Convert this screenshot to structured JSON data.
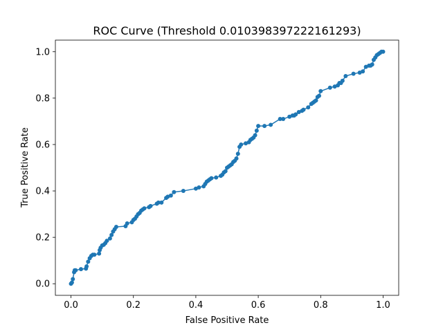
{
  "chart_data": {
    "type": "line",
    "title": "ROC Curve (Threshold 0.010398397222161293)",
    "xlabel": "False Positive Rate",
    "ylabel": "True Positive Rate",
    "xlim": [
      -0.05,
      1.05
    ],
    "ylim": [
      -0.05,
      1.05
    ],
    "xticks": [
      0.0,
      0.2,
      0.4,
      0.6,
      0.8,
      1.0
    ],
    "yticks": [
      0.0,
      0.2,
      0.4,
      0.6,
      0.8,
      1.0
    ],
    "tick_labels_x": [
      "0.0",
      "0.2",
      "0.4",
      "0.6",
      "0.8",
      "1.0"
    ],
    "tick_labels_y": [
      "0.0",
      "0.2",
      "0.4",
      "0.6",
      "0.8",
      "1.0"
    ],
    "grid": false,
    "color": "#1f77b4",
    "marker": "circle",
    "series": [
      {
        "x": [
          0.0,
          0.003,
          0.006,
          0.01,
          0.012,
          0.015,
          0.032,
          0.048,
          0.05,
          0.055,
          0.06,
          0.065,
          0.07,
          0.075,
          0.09,
          0.092,
          0.095,
          0.1,
          0.105,
          0.11,
          0.115,
          0.125,
          0.13,
          0.135,
          0.14,
          0.145,
          0.175,
          0.18,
          0.195,
          0.2,
          0.205,
          0.21,
          0.215,
          0.22,
          0.225,
          0.23,
          0.235,
          0.25,
          0.255,
          0.275,
          0.28,
          0.29,
          0.305,
          0.31,
          0.32,
          0.33,
          0.36,
          0.4,
          0.41,
          0.425,
          0.43,
          0.435,
          0.44,
          0.445,
          0.45,
          0.465,
          0.48,
          0.485,
          0.49,
          0.495,
          0.5,
          0.505,
          0.51,
          0.515,
          0.52,
          0.525,
          0.53,
          0.535,
          0.54,
          0.545,
          0.56,
          0.57,
          0.575,
          0.58,
          0.585,
          0.59,
          0.595,
          0.6,
          0.62,
          0.64,
          0.67,
          0.68,
          0.7,
          0.71,
          0.715,
          0.72,
          0.73,
          0.74,
          0.745,
          0.76,
          0.77,
          0.775,
          0.78,
          0.785,
          0.79,
          0.795,
          0.8,
          0.83,
          0.845,
          0.855,
          0.86,
          0.865,
          0.87,
          0.88,
          0.905,
          0.925,
          0.935,
          0.945,
          0.955,
          0.96,
          0.965,
          0.97,
          0.975,
          0.98,
          0.985,
          0.99,
          0.995,
          1.0
        ],
        "y": [
          0.0,
          0.005,
          0.02,
          0.05,
          0.058,
          0.058,
          0.063,
          0.065,
          0.075,
          0.095,
          0.11,
          0.12,
          0.125,
          0.125,
          0.13,
          0.145,
          0.155,
          0.165,
          0.168,
          0.175,
          0.185,
          0.195,
          0.21,
          0.225,
          0.235,
          0.245,
          0.248,
          0.26,
          0.265,
          0.275,
          0.28,
          0.29,
          0.3,
          0.305,
          0.315,
          0.32,
          0.325,
          0.33,
          0.335,
          0.345,
          0.35,
          0.35,
          0.37,
          0.375,
          0.38,
          0.395,
          0.4,
          0.41,
          0.415,
          0.42,
          0.43,
          0.44,
          0.445,
          0.45,
          0.455,
          0.458,
          0.465,
          0.47,
          0.48,
          0.485,
          0.5,
          0.505,
          0.51,
          0.515,
          0.525,
          0.53,
          0.54,
          0.56,
          0.59,
          0.6,
          0.605,
          0.61,
          0.62,
          0.625,
          0.63,
          0.64,
          0.66,
          0.68,
          0.68,
          0.685,
          0.71,
          0.71,
          0.72,
          0.725,
          0.725,
          0.73,
          0.74,
          0.745,
          0.75,
          0.76,
          0.775,
          0.78,
          0.785,
          0.79,
          0.805,
          0.81,
          0.83,
          0.845,
          0.85,
          0.855,
          0.865,
          0.865,
          0.875,
          0.895,
          0.905,
          0.91,
          0.915,
          0.935,
          0.94,
          0.94,
          0.945,
          0.965,
          0.975,
          0.985,
          0.99,
          0.995,
          1.0,
          1.0
        ]
      }
    ]
  }
}
